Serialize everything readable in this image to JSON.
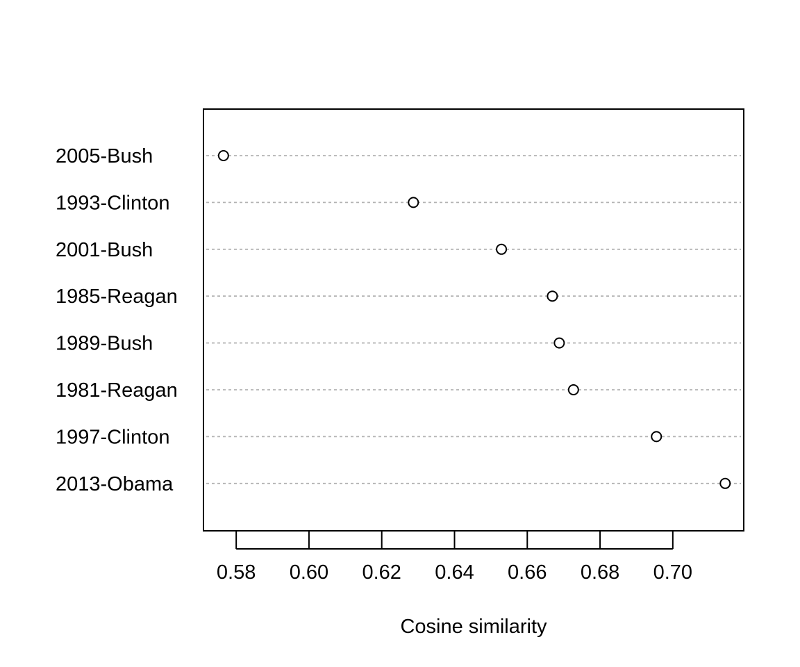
{
  "chart_data": {
    "type": "scatter",
    "title": "",
    "xlabel": "Cosine similarity",
    "ylabel": "",
    "categories": [
      "2005-Bush",
      "1993-Clinton",
      "2001-Bush",
      "1985-Reagan",
      "1989-Bush",
      "1981-Reagan",
      "1997-Clinton",
      "2013-Obama"
    ],
    "values": [
      0.5765,
      0.6287,
      0.6529,
      0.6669,
      0.6688,
      0.6727,
      0.6955,
      0.7144
    ],
    "xlim": [
      0.571,
      0.7195
    ],
    "xticks": [
      0.58,
      0.6,
      0.62,
      0.64,
      0.66,
      0.68,
      0.7
    ],
    "xtick_labels": [
      "0.58",
      "0.60",
      "0.62",
      "0.64",
      "0.66",
      "0.68",
      "0.70"
    ],
    "grid": "dotted horizontal guide per row",
    "legend": "none",
    "point_style": "open circle"
  }
}
